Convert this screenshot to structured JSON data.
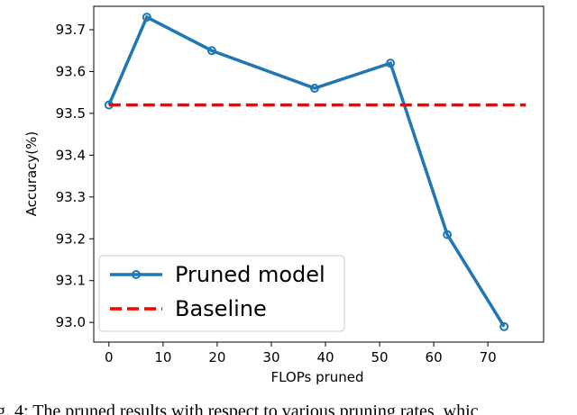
{
  "chart_data": {
    "type": "line",
    "xlabel": "FLOPs pruned",
    "ylabel": "Accuracy(%)",
    "series": [
      {
        "name": "Pruned model",
        "color": "#1f77b4",
        "style": "solid",
        "marker": "circle",
        "x": [
          0,
          7,
          19,
          38,
          52,
          62.5,
          73
        ],
        "values": [
          93.52,
          93.73,
          93.65,
          93.56,
          93.62,
          93.21,
          92.99
        ]
      },
      {
        "name": "Baseline",
        "color": "#ff0000",
        "style": "dashed",
        "marker": "none",
        "x": [
          0,
          77
        ],
        "values": [
          93.52,
          93.52
        ]
      }
    ],
    "xlim": [
      -2.8,
      80.3
    ],
    "xticks": [
      0,
      10,
      20,
      30,
      40,
      50,
      60,
      70
    ],
    "ylim": [
      92.953,
      93.756
    ],
    "yticks": [
      {
        "value": 93,
        "label": "93.0"
      },
      93.1,
      93.2,
      93.3,
      93.4,
      93.5,
      93.6,
      93.7
    ],
    "grid": false,
    "legend": "lower left",
    "caption": "g. 4: The pruned results with respect to various pruning rates, whic"
  }
}
